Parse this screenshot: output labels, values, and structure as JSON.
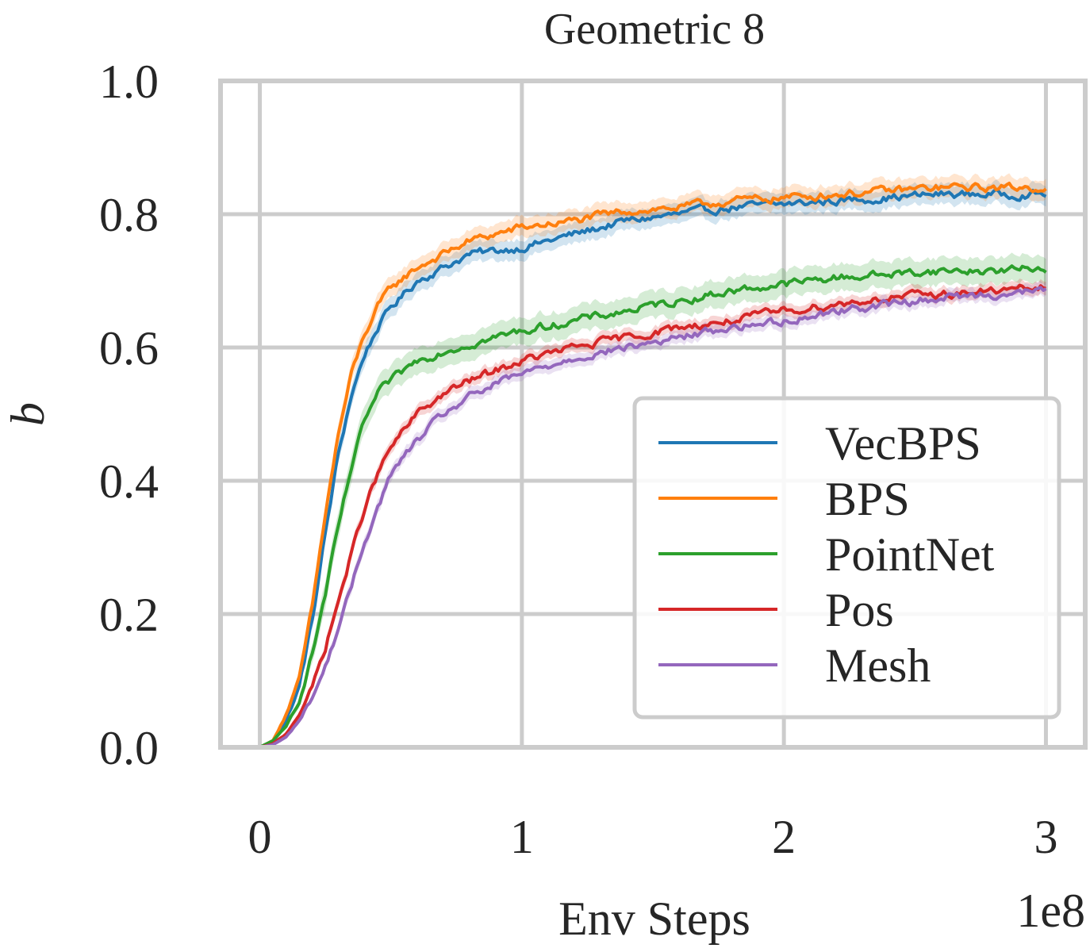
{
  "chart_data": {
    "type": "line",
    "title": "Geometric 8",
    "xlabel": "Env Steps",
    "ylabel": "b",
    "x_offset_label": "1e8",
    "xlim": [
      -0.15,
      3.15
    ],
    "ylim": [
      0.0,
      1.0
    ],
    "xticks": [
      0,
      1,
      2,
      3
    ],
    "xtick_labels": [
      "0",
      "1",
      "2",
      "3"
    ],
    "yticks": [
      0.0,
      0.2,
      0.4,
      0.6,
      0.8,
      1.0
    ],
    "ytick_labels": [
      "0.0",
      "0.2",
      "0.4",
      "0.6",
      "0.8",
      "1.0"
    ],
    "grid": true,
    "legend_position": "lower-right",
    "x": [
      0.0,
      0.05,
      0.1,
      0.15,
      0.2,
      0.25,
      0.3,
      0.35,
      0.4,
      0.45,
      0.5,
      0.6,
      0.7,
      0.8,
      0.9,
      1.0,
      1.2,
      1.4,
      1.6,
      1.8,
      2.0,
      2.2,
      2.4,
      2.6,
      2.8,
      3.0
    ],
    "series": [
      {
        "name": "VecBPS",
        "color": "#1f77b4",
        "band": 0.015,
        "values": [
          0.0,
          0.01,
          0.04,
          0.09,
          0.19,
          0.32,
          0.44,
          0.53,
          0.59,
          0.63,
          0.66,
          0.7,
          0.72,
          0.74,
          0.745,
          0.75,
          0.77,
          0.79,
          0.8,
          0.81,
          0.815,
          0.82,
          0.825,
          0.83,
          0.83,
          0.83
        ]
      },
      {
        "name": "BPS",
        "color": "#ff7f0e",
        "band": 0.015,
        "values": [
          0.0,
          0.01,
          0.05,
          0.1,
          0.21,
          0.35,
          0.47,
          0.56,
          0.62,
          0.66,
          0.69,
          0.72,
          0.74,
          0.76,
          0.77,
          0.78,
          0.79,
          0.805,
          0.81,
          0.82,
          0.825,
          0.83,
          0.835,
          0.84,
          0.84,
          0.84
        ]
      },
      {
        "name": "PointNet",
        "color": "#2ca02c",
        "band": 0.02,
        "values": [
          0.0,
          0.01,
          0.03,
          0.07,
          0.14,
          0.23,
          0.33,
          0.42,
          0.49,
          0.53,
          0.55,
          0.58,
          0.595,
          0.605,
          0.615,
          0.625,
          0.64,
          0.655,
          0.67,
          0.685,
          0.695,
          0.705,
          0.71,
          0.715,
          0.715,
          0.72
        ]
      },
      {
        "name": "Pos",
        "color": "#d62728",
        "band": 0.01,
        "values": [
          0.0,
          0.005,
          0.02,
          0.05,
          0.09,
          0.15,
          0.22,
          0.29,
          0.36,
          0.41,
          0.45,
          0.5,
          0.53,
          0.55,
          0.565,
          0.58,
          0.6,
          0.615,
          0.63,
          0.64,
          0.655,
          0.665,
          0.675,
          0.68,
          0.685,
          0.69
        ]
      },
      {
        "name": "Mesh",
        "color": "#9467bd",
        "band": 0.01,
        "values": [
          0.0,
          0.004,
          0.015,
          0.04,
          0.075,
          0.12,
          0.18,
          0.24,
          0.31,
          0.36,
          0.41,
          0.46,
          0.5,
          0.525,
          0.545,
          0.56,
          0.585,
          0.6,
          0.615,
          0.63,
          0.64,
          0.655,
          0.665,
          0.675,
          0.68,
          0.685
        ]
      }
    ]
  }
}
